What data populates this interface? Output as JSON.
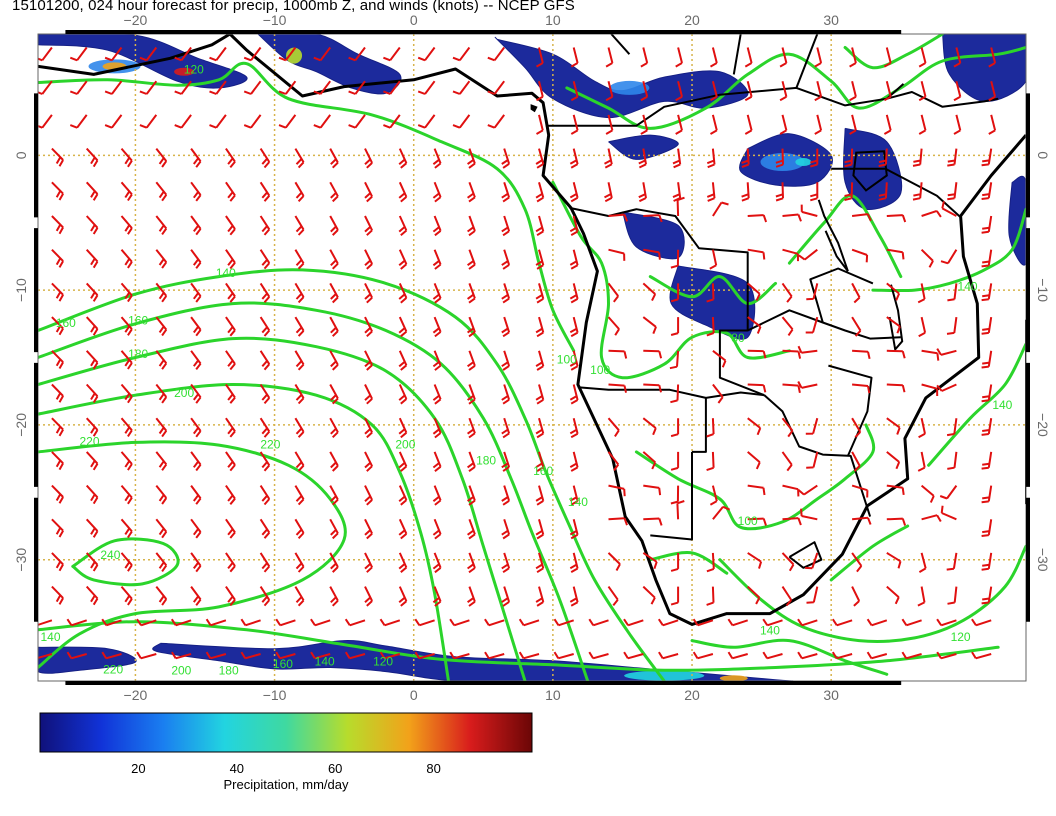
{
  "title": "15101200, 024 hour forecast for precip, 1000mb Z, and winds (knots) -- NCEP GFS",
  "map": {
    "projection": "cylindrical lat-lon",
    "lon_range": [
      -27,
      44
    ],
    "lat_range": [
      -39,
      9
    ],
    "lon_ticks": [
      {
        "value": -20,
        "label": "−20"
      },
      {
        "value": -10,
        "label": "−10"
      },
      {
        "value": 0,
        "label": "0"
      },
      {
        "value": 10,
        "label": "10"
      },
      {
        "value": 20,
        "label": "20"
      },
      {
        "value": 30,
        "label": "30"
      }
    ],
    "lat_ticks": [
      {
        "value": 0,
        "label": "0"
      },
      {
        "value": -10,
        "label": "−10"
      },
      {
        "value": -20,
        "label": "−20"
      },
      {
        "value": -30,
        "label": "−30"
      }
    ],
    "grid": true,
    "colors": {
      "contour": "#2bd42b",
      "contour_label": "#33e033",
      "wind_barb": "#e01010",
      "coastline": "#000000",
      "grid": "#d7b34a",
      "tick_text": "#6a6a6a"
    },
    "contour_labels": [
      {
        "text": "120",
        "lon": -15.8,
        "lat": 6.3
      },
      {
        "text": "140",
        "lon": -13.5,
        "lat": -8.8
      },
      {
        "text": "160",
        "lon": -25,
        "lat": -12.5
      },
      {
        "text": "160",
        "lon": -19.8,
        "lat": -12.3
      },
      {
        "text": "180",
        "lon": -19.8,
        "lat": -14.8
      },
      {
        "text": "200",
        "lon": -16.5,
        "lat": -17.7
      },
      {
        "text": "220",
        "lon": -23.3,
        "lat": -21.3
      },
      {
        "text": "220",
        "lon": -10.3,
        "lat": -21.5
      },
      {
        "text": "200",
        "lon": -0.6,
        "lat": -21.5
      },
      {
        "text": "240",
        "lon": -21.8,
        "lat": -29.7
      },
      {
        "text": "180",
        "lon": 5.2,
        "lat": -22.7
      },
      {
        "text": "160",
        "lon": 9.3,
        "lat": -23.5
      },
      {
        "text": "140",
        "lon": 11.8,
        "lat": -25.8
      },
      {
        "text": "100",
        "lon": 11.0,
        "lat": -15.2
      },
      {
        "text": "100",
        "lon": 13.4,
        "lat": -16.0
      },
      {
        "text": "80",
        "lon": 23.3,
        "lat": -13.6
      },
      {
        "text": "100",
        "lon": 24.0,
        "lat": -27.2
      },
      {
        "text": "140",
        "lon": 39.8,
        "lat": -9.8
      },
      {
        "text": "140",
        "lon": 42.3,
        "lat": -18.6
      },
      {
        "text": "140",
        "lon": 25.6,
        "lat": -35.3
      },
      {
        "text": "120",
        "lon": 39.3,
        "lat": -35.8
      },
      {
        "text": "220",
        "lon": -21.6,
        "lat": -38.2
      },
      {
        "text": "200",
        "lon": -16.7,
        "lat": -38.3
      },
      {
        "text": "180",
        "lon": -13.3,
        "lat": -38.3
      },
      {
        "text": "160",
        "lon": -9.4,
        "lat": -37.8
      },
      {
        "text": "140",
        "lon": -6.4,
        "lat": -37.6
      },
      {
        "text": "120",
        "lon": -2.2,
        "lat": -37.6
      },
      {
        "text": "140",
        "lon": -26.1,
        "lat": -35.8
      }
    ]
  },
  "colorbar": {
    "min": 0,
    "max": 100,
    "ticks": [
      {
        "value": 20,
        "label": "20"
      },
      {
        "value": 40,
        "label": "40"
      },
      {
        "value": 60,
        "label": "60"
      },
      {
        "value": 80,
        "label": "80"
      }
    ],
    "label": "Precipitation, mm/day",
    "stops": [
      "#10117a",
      "#1133d8",
      "#1a7ef0",
      "#22d4e0",
      "#3fd9a0",
      "#b7dc2c",
      "#f2a21a",
      "#d81c1c",
      "#6b0606"
    ]
  }
}
